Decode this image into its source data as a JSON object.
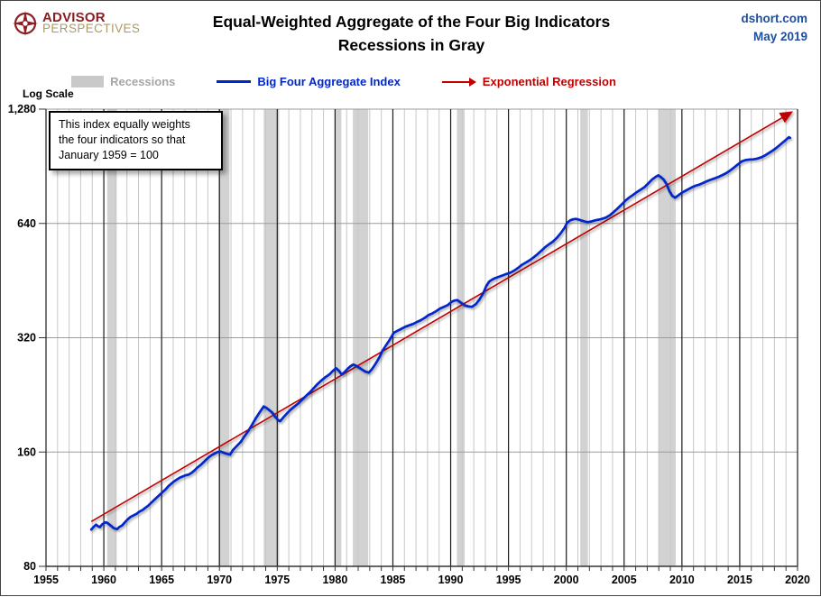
{
  "header": {
    "logo_line1": "ADVISOR",
    "logo_line2": "PERSPECTIVES",
    "title_line1": "Equal-Weighted Aggregate of the Four Big Indicators",
    "title_line2": "Recessions in Gray",
    "source": "dshort.com",
    "date": "May 2019"
  },
  "legend": {
    "recessions_label": "Recessions",
    "index_label": "Big Four Aggregate Index",
    "regression_label": "Exponential Regression"
  },
  "annotation": {
    "line1": "This index equally weights",
    "line2": "the four indicators  so that",
    "line3": "January 1959 = 100"
  },
  "axes": {
    "y_axis_label": "Log Scale",
    "y_tick_labels": [
      "1,280",
      "640",
      "320",
      "160",
      "80"
    ],
    "y_tick_values": [
      1280,
      640,
      320,
      160,
      80
    ],
    "x_tick_labels": [
      "1955",
      "1960",
      "1965",
      "1970",
      "1975",
      "1980",
      "1985",
      "1990",
      "1995",
      "2000",
      "2005",
      "2010",
      "2015",
      "2020"
    ],
    "x_tick_values": [
      1955,
      1960,
      1965,
      1970,
      1975,
      1980,
      1985,
      1990,
      1995,
      2000,
      2005,
      2010,
      2015,
      2020
    ]
  },
  "colors": {
    "index_line": "#0026CC",
    "regression_line": "#C00000",
    "recession_band": "#D2D2D2",
    "minor_grid": "#C8C8C8",
    "major_grid": "#1A1A1A",
    "h_grid": "#9C9C9C",
    "axis": "#333333",
    "legend_gray_text": "#A6A6A6",
    "source_blue": "#1F4E9E",
    "logo_red": "#8B1E22",
    "logo_gold": "#AC9A66"
  },
  "chart_data": {
    "type": "line",
    "title": "Equal-Weighted Aggregate of the Four Big Indicators",
    "subtitle": "Recessions in Gray",
    "scale": "log",
    "x_range": [
      1955,
      2020
    ],
    "y_range": [
      80,
      1280
    ],
    "grid": "minor-yearly-vertical, log2-horizontal",
    "legend_position": "top-center",
    "recessions": [
      [
        1960.29,
        1961.12
      ],
      [
        1969.92,
        1970.87
      ],
      [
        1973.83,
        1975.17
      ],
      [
        1980.04,
        1980.54
      ],
      [
        1981.54,
        1982.87
      ],
      [
        1990.54,
        1991.21
      ],
      [
        2001.21,
        2001.87
      ],
      [
        2007.96,
        2009.46
      ]
    ],
    "series": [
      {
        "name": "Big Four Aggregate Index",
        "color": "#0026CC",
        "points": [
          [
            1958.92,
            100
          ],
          [
            1959.17,
            102
          ],
          [
            1959.33,
            103
          ],
          [
            1959.5,
            102
          ],
          [
            1959.67,
            101.5
          ],
          [
            1959.83,
            103
          ],
          [
            1960.0,
            104
          ],
          [
            1960.17,
            104.5
          ],
          [
            1960.33,
            104
          ],
          [
            1960.5,
            103
          ],
          [
            1960.67,
            102
          ],
          [
            1960.83,
            101
          ],
          [
            1961.0,
            100.5
          ],
          [
            1961.17,
            100.3
          ],
          [
            1961.33,
            101.5
          ],
          [
            1961.58,
            102.5
          ],
          [
            1961.83,
            104.5
          ],
          [
            1962.08,
            106.5
          ],
          [
            1962.33,
            108
          ],
          [
            1962.58,
            109
          ],
          [
            1962.83,
            110
          ],
          [
            1963.08,
            111.5
          ],
          [
            1963.33,
            112.5
          ],
          [
            1963.58,
            114
          ],
          [
            1963.83,
            115.5
          ],
          [
            1964.08,
            117.5
          ],
          [
            1964.33,
            119.5
          ],
          [
            1964.58,
            121.5
          ],
          [
            1964.83,
            123.5
          ],
          [
            1965.08,
            125.5
          ],
          [
            1965.33,
            127.5
          ],
          [
            1965.58,
            130
          ],
          [
            1965.83,
            132
          ],
          [
            1966.08,
            134
          ],
          [
            1966.33,
            135.5
          ],
          [
            1966.58,
            137
          ],
          [
            1966.83,
            138
          ],
          [
            1967.08,
            139
          ],
          [
            1967.33,
            139.5
          ],
          [
            1967.58,
            141
          ],
          [
            1967.83,
            143
          ],
          [
            1968.08,
            145.5
          ],
          [
            1968.33,
            147.5
          ],
          [
            1968.58,
            150
          ],
          [
            1968.83,
            152.5
          ],
          [
            1969.08,
            155
          ],
          [
            1969.33,
            157
          ],
          [
            1969.58,
            158.5
          ],
          [
            1969.83,
            160
          ],
          [
            1970.08,
            160.5
          ],
          [
            1970.33,
            159.5
          ],
          [
            1970.58,
            158.5
          ],
          [
            1970.92,
            157.5
          ],
          [
            1971.17,
            162
          ],
          [
            1971.5,
            166
          ],
          [
            1971.83,
            170
          ],
          [
            1972.17,
            176
          ],
          [
            1972.5,
            182
          ],
          [
            1972.83,
            189
          ],
          [
            1973.17,
            197
          ],
          [
            1973.5,
            204
          ],
          [
            1973.83,
            211
          ],
          [
            1974.08,
            209
          ],
          [
            1974.33,
            206
          ],
          [
            1974.58,
            203
          ],
          [
            1974.83,
            198
          ],
          [
            1975.08,
            194
          ],
          [
            1975.25,
            193
          ],
          [
            1975.5,
            197
          ],
          [
            1975.83,
            202
          ],
          [
            1976.17,
            207
          ],
          [
            1976.5,
            211
          ],
          [
            1976.83,
            215
          ],
          [
            1977.17,
            220
          ],
          [
            1977.5,
            225
          ],
          [
            1977.83,
            230
          ],
          [
            1978.17,
            236
          ],
          [
            1978.5,
            242
          ],
          [
            1978.83,
            247
          ],
          [
            1979.17,
            252
          ],
          [
            1979.5,
            256
          ],
          [
            1979.83,
            262
          ],
          [
            1980.08,
            266
          ],
          [
            1980.33,
            262
          ],
          [
            1980.58,
            256
          ],
          [
            1980.83,
            260
          ],
          [
            1981.08,
            265
          ],
          [
            1981.33,
            269
          ],
          [
            1981.58,
            272
          ],
          [
            1981.83,
            270
          ],
          [
            1982.08,
            267
          ],
          [
            1982.33,
            264
          ],
          [
            1982.58,
            261
          ],
          [
            1982.92,
            259
          ],
          [
            1983.17,
            264
          ],
          [
            1983.5,
            273
          ],
          [
            1983.83,
            284
          ],
          [
            1984.08,
            295
          ],
          [
            1984.42,
            306
          ],
          [
            1984.75,
            317
          ],
          [
            1985.08,
            330
          ],
          [
            1985.42,
            334
          ],
          [
            1985.75,
            338
          ],
          [
            1986.08,
            342
          ],
          [
            1986.42,
            345
          ],
          [
            1986.75,
            348
          ],
          [
            1987.08,
            352
          ],
          [
            1987.42,
            356
          ],
          [
            1987.75,
            361
          ],
          [
            1988.08,
            367
          ],
          [
            1988.42,
            371
          ],
          [
            1988.75,
            376
          ],
          [
            1989.08,
            382
          ],
          [
            1989.42,
            386
          ],
          [
            1989.75,
            390
          ],
          [
            1990.08,
            398
          ],
          [
            1990.33,
            401
          ],
          [
            1990.58,
            402
          ],
          [
            1990.83,
            397
          ],
          [
            1991.08,
            392
          ],
          [
            1991.25,
            389
          ],
          [
            1991.5,
            387
          ],
          [
            1991.83,
            386
          ],
          [
            1992.17,
            392
          ],
          [
            1992.5,
            404
          ],
          [
            1992.83,
            420
          ],
          [
            1993.08,
            438
          ],
          [
            1993.33,
            450
          ],
          [
            1993.58,
            455
          ],
          [
            1993.83,
            459
          ],
          [
            1994.17,
            463
          ],
          [
            1994.5,
            467
          ],
          [
            1994.83,
            471
          ],
          [
            1995.17,
            475
          ],
          [
            1995.5,
            481
          ],
          [
            1995.83,
            489
          ],
          [
            1996.17,
            498
          ],
          [
            1996.5,
            505
          ],
          [
            1996.83,
            512
          ],
          [
            1997.17,
            521
          ],
          [
            1997.5,
            531
          ],
          [
            1997.83,
            542
          ],
          [
            1998.17,
            554
          ],
          [
            1998.5,
            564
          ],
          [
            1998.83,
            573
          ],
          [
            1999.17,
            586
          ],
          [
            1999.5,
            602
          ],
          [
            1999.83,
            622
          ],
          [
            2000.08,
            643
          ],
          [
            2000.33,
            652
          ],
          [
            2000.58,
            656
          ],
          [
            2000.83,
            658
          ],
          [
            2001.08,
            655
          ],
          [
            2001.33,
            651
          ],
          [
            2001.58,
            648
          ],
          [
            2001.83,
            645
          ],
          [
            2002.08,
            647
          ],
          [
            2002.33,
            650
          ],
          [
            2002.58,
            653
          ],
          [
            2002.83,
            655
          ],
          [
            2003.08,
            658
          ],
          [
            2003.42,
            663
          ],
          [
            2003.75,
            672
          ],
          [
            2004.08,
            685
          ],
          [
            2004.42,
            700
          ],
          [
            2004.75,
            716
          ],
          [
            2005.08,
            733
          ],
          [
            2005.42,
            748
          ],
          [
            2005.75,
            760
          ],
          [
            2006.08,
            773
          ],
          [
            2006.42,
            785
          ],
          [
            2006.75,
            797
          ],
          [
            2007.08,
            815
          ],
          [
            2007.42,
            835
          ],
          [
            2007.75,
            850
          ],
          [
            2007.96,
            857
          ],
          [
            2008.17,
            848
          ],
          [
            2008.42,
            835
          ],
          [
            2008.67,
            812
          ],
          [
            2008.92,
            778
          ],
          [
            2009.17,
            756
          ],
          [
            2009.42,
            748
          ],
          [
            2009.67,
            758
          ],
          [
            2009.92,
            768
          ],
          [
            2010.17,
            776
          ],
          [
            2010.5,
            786
          ],
          [
            2010.83,
            796
          ],
          [
            2011.17,
            804
          ],
          [
            2011.5,
            810
          ],
          [
            2011.83,
            818
          ],
          [
            2012.17,
            827
          ],
          [
            2012.5,
            834
          ],
          [
            2012.83,
            841
          ],
          [
            2013.17,
            849
          ],
          [
            2013.5,
            858
          ],
          [
            2013.83,
            868
          ],
          [
            2014.17,
            882
          ],
          [
            2014.5,
            898
          ],
          [
            2014.83,
            915
          ],
          [
            2015.17,
            932
          ],
          [
            2015.5,
            940
          ],
          [
            2015.83,
            943
          ],
          [
            2016.17,
            944
          ],
          [
            2016.5,
            948
          ],
          [
            2016.83,
            955
          ],
          [
            2017.17,
            966
          ],
          [
            2017.5,
            980
          ],
          [
            2017.83,
            995
          ],
          [
            2018.17,
            1012
          ],
          [
            2018.5,
            1032
          ],
          [
            2018.83,
            1052
          ],
          [
            2019.08,
            1068
          ],
          [
            2019.25,
            1080
          ],
          [
            2019.35,
            1075
          ]
        ]
      },
      {
        "name": "Exponential Regression",
        "color": "#C00000",
        "points": [
          [
            1958.92,
            105
          ],
          [
            2019.4,
            1252
          ]
        ]
      }
    ]
  }
}
